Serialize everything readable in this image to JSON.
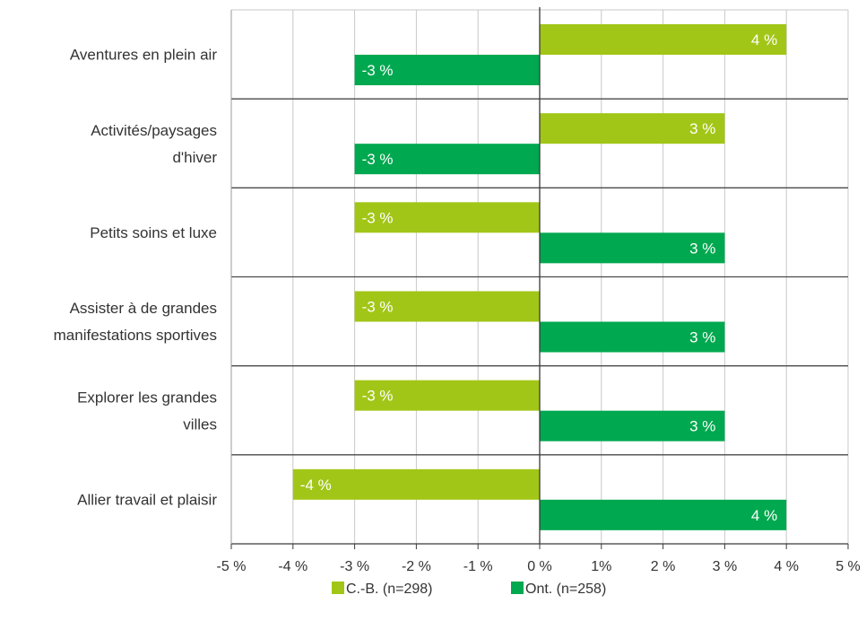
{
  "chart_data": {
    "type": "bar",
    "orientation": "horizontal",
    "categories": [
      [
        "Aventures en plein air"
      ],
      [
        "Activités/paysages",
        "d'hiver"
      ],
      [
        "Petits soins et luxe"
      ],
      [
        "Assister à de grandes",
        "manifestations sportives"
      ],
      [
        "Explorer les grandes",
        "villes"
      ],
      [
        "Allier travail et plaisir"
      ]
    ],
    "series": [
      {
        "name": "C.-B. (n=298)",
        "color": "#a2c617",
        "values": [
          4,
          3,
          -3,
          -3,
          -3,
          -4
        ],
        "labels": [
          "4 %",
          "3 %",
          "-3 %",
          "-3 %",
          "-3 %",
          "-4 %"
        ]
      },
      {
        "name": "Ont. (n=258)",
        "color": "#00a84f",
        "values": [
          -3,
          -3,
          3,
          3,
          3,
          4
        ],
        "labels": [
          "-3 %",
          "-3 %",
          "3 %",
          "3 %",
          "3 %",
          "4 %"
        ]
      }
    ],
    "xlim": [
      -5,
      5
    ],
    "xticks": [
      -5,
      -4,
      -3,
      -2,
      -1,
      0,
      1,
      2,
      3,
      4,
      5
    ],
    "xtick_labels": [
      "-5 %",
      "-4 %",
      "-3 %",
      "-2 %",
      "-1 %",
      "0 %",
      "1%",
      "2 %",
      "3 %",
      "4 %",
      "5 %"
    ],
    "grid": true,
    "legend_position": "bottom-center"
  }
}
